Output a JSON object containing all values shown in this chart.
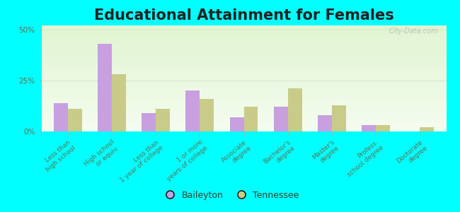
{
  "title": "Educational Attainment for Females",
  "categories": [
    "Less than\nhigh school",
    "High school\nor equiv.",
    "Less than\n1 year of college",
    "1 or more\nyears of college",
    "Associate\ndegree",
    "Bachelor's\ndegree",
    "Master's\ndegree",
    "Profess.\nschool degree",
    "Doctorate\ndegree"
  ],
  "baileyton": [
    14,
    43,
    9,
    20,
    7,
    12,
    8,
    3,
    0
  ],
  "tennessee": [
    11,
    28,
    11,
    16,
    12,
    21,
    13,
    3,
    2
  ],
  "baileyton_color": "#c8a0e0",
  "tennessee_color": "#c8cc88",
  "ylim": [
    0,
    52
  ],
  "yticks": [
    0,
    25,
    50
  ],
  "ytick_labels": [
    "0%",
    "25%",
    "50%"
  ],
  "bg_top_color": "#d8ecc8",
  "bg_bottom_color": "#f0f8e8",
  "outer_background": "#00ffff",
  "grid_color": "#e0e8d0",
  "watermark": "City-Data.com",
  "legend_baileyton": "Baileyton",
  "legend_tennessee": "Tennessee",
  "title_fontsize": 15,
  "tick_fontsize": 6.5,
  "bar_width": 0.32
}
